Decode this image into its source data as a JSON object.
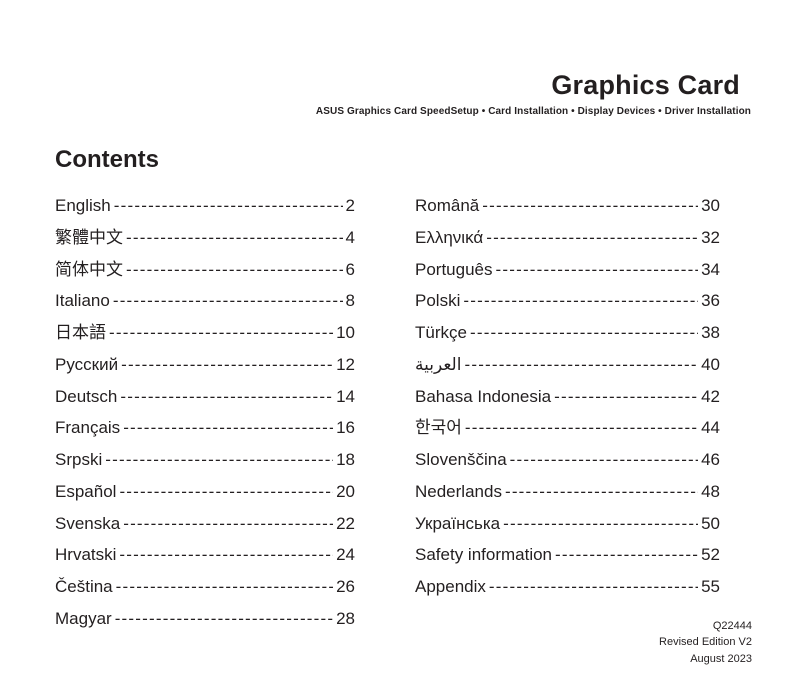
{
  "header": {
    "title": "Graphics Card",
    "subtitle": "ASUS Graphics Card SpeedSetup • Card Installation • Display Devices • Driver Installation"
  },
  "contents": {
    "heading": "Contents"
  },
  "toc": {
    "left": [
      {
        "label": "English",
        "page": "2"
      },
      {
        "label": "繁體中文",
        "page": "4"
      },
      {
        "label": "简体中文",
        "page": "6"
      },
      {
        "label": "Italiano",
        "page": "8"
      },
      {
        "label": "日本語",
        "page": "10"
      },
      {
        "label": "Русский",
        "page": "12"
      },
      {
        "label": "Deutsch",
        "page": "14"
      },
      {
        "label": "Français",
        "page": "16"
      },
      {
        "label": "Srpski",
        "page": "18"
      },
      {
        "label": "Español",
        "page": "20"
      },
      {
        "label": "Svenska",
        "page": "22"
      },
      {
        "label": "Hrvatski",
        "page": "24"
      },
      {
        "label": "Čeština",
        "page": "26"
      },
      {
        "label": "Magyar",
        "page": "28"
      }
    ],
    "right": [
      {
        "label": "Română",
        "page": "30"
      },
      {
        "label": "Ελληνικά",
        "page": "32"
      },
      {
        "label": "Português",
        "page": "34"
      },
      {
        "label": "Polski",
        "page": "36"
      },
      {
        "label": "Türkçe",
        "page": "38"
      },
      {
        "label": "العربية",
        "page": "40"
      },
      {
        "label": "Bahasa Indonesia",
        "page": "42"
      },
      {
        "label": "한국어",
        "page": "44"
      },
      {
        "label": "Slovenščina",
        "page": "46"
      },
      {
        "label": "Nederlands",
        "page": "48"
      },
      {
        "label": "Українська",
        "page": "50"
      },
      {
        "label": "Safety information",
        "page": "52"
      },
      {
        "label": "Appendix",
        "page": "55"
      }
    ]
  },
  "footer": {
    "doc_number": "Q22444",
    "edition": "Revised Edition V2",
    "date": "August 2023"
  },
  "colors": {
    "text": "#231f20",
    "background": "#ffffff"
  }
}
